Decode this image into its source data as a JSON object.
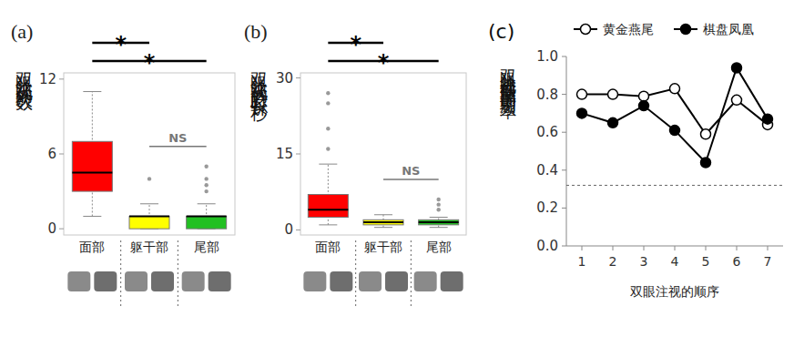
{
  "chart_data": [
    {
      "type": "box",
      "label": "(a)",
      "y_label": "双眼注视的次数",
      "categories": [
        "面部",
        "躯干部",
        "尾部"
      ],
      "colors": [
        "#ff0000",
        "#ffff00",
        "#22c022"
      ],
      "boxes": [
        {
          "low": 1,
          "q1": 3,
          "median": 4.5,
          "q3": 7,
          "high": 11,
          "outliers": []
        },
        {
          "low": 0,
          "q1": 0,
          "median": 1,
          "q3": 1,
          "high": 2,
          "outliers": [
            4
          ]
        },
        {
          "low": 0,
          "q1": 0,
          "median": 1,
          "q3": 1,
          "high": 2,
          "outliers": [
            3,
            3.5,
            4,
            5
          ]
        }
      ],
      "ylim": [
        -0.5,
        12.5
      ],
      "yticks": [
        0,
        6,
        12
      ],
      "significance": [
        {
          "from": 0,
          "to": 1,
          "label": "*"
        },
        {
          "from": 0,
          "to": 2,
          "label": "*"
        },
        {
          "from": 1,
          "to": 2,
          "label": "NS"
        }
      ]
    },
    {
      "type": "box",
      "label": "(b)",
      "y_label": "双眼注视的总时长（秒）",
      "categories": [
        "面部",
        "躯干部",
        "尾部"
      ],
      "colors": [
        "#ff0000",
        "#ffff00",
        "#22c022"
      ],
      "boxes": [
        {
          "low": 1,
          "q1": 2.5,
          "median": 4,
          "q3": 7,
          "high": 13,
          "outliers": [
            16,
            20,
            25,
            27
          ]
        },
        {
          "low": 0.5,
          "q1": 1,
          "median": 1.5,
          "q3": 2,
          "high": 3,
          "outliers": []
        },
        {
          "low": 0.5,
          "q1": 1,
          "median": 1.5,
          "q3": 2,
          "high": 2.5,
          "outliers": [
            4,
            5,
            6
          ]
        }
      ],
      "ylim": [
        -1,
        31
      ],
      "yticks": [
        0,
        15,
        30
      ],
      "significance": [
        {
          "from": 0,
          "to": 1,
          "label": "*"
        },
        {
          "from": 0,
          "to": 2,
          "label": "*"
        },
        {
          "from": 1,
          "to": 2,
          "label": "NS"
        }
      ]
    },
    {
      "type": "line",
      "label": "(c)",
      "y_label": "双眼注视模型面部的平均频率",
      "x_label": "双眼注视的顺序",
      "x": [
        1,
        2,
        3,
        4,
        5,
        6,
        7
      ],
      "series": [
        {
          "name": "黄金燕尾",
          "color": "#000000",
          "marker": "open-circle",
          "values": [
            0.8,
            0.8,
            0.79,
            0.83,
            0.59,
            0.77,
            0.64
          ]
        },
        {
          "name": "棋盘凤凰",
          "color": "#000000",
          "marker": "filled-circle",
          "values": [
            0.7,
            0.65,
            0.74,
            0.61,
            0.44,
            0.94,
            0.67
          ]
        }
      ],
      "reference_line": {
        "value": 0.32,
        "line_style": "dashed"
      },
      "xlim": [
        0.5,
        7.5
      ],
      "xticks": [
        1,
        2,
        3,
        4,
        5,
        6,
        7
      ],
      "ylim": [
        0,
        1
      ],
      "yticks": [
        {
          "value": 0,
          "label": "0.0"
        },
        {
          "value": 0.2,
          "label": "0.2"
        },
        {
          "value": 0.4,
          "label": "0.4"
        },
        {
          "value": 0.6,
          "label": "0.6"
        },
        {
          "value": 0.8,
          "label": "0.8"
        },
        {
          "value": 1,
          "label": "1.0"
        }
      ],
      "legend": "top"
    }
  ]
}
